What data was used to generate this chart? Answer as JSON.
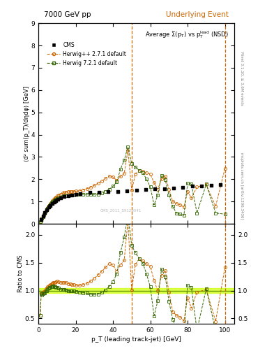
{
  "title_left": "7000 GeV pp",
  "title_right": "Underlying Event",
  "ylabel_main": "⟨d² sum(p_T)/dηdφ⟩ [GeV]",
  "ylabel_ratio": "Ratio to CMS",
  "xlabel": "p_T (leading track-jet) [GeV]",
  "right_label1": "Rivet 3.1.10, ≥ 3.6M events",
  "right_label2": "mcplots.cern.ch [arXiv:1306.3436]",
  "watermark": "CMS_2011_S9120041",
  "ylim_main": [
    0,
    9
  ],
  "ylim_ratio": [
    0.4,
    2.2
  ],
  "xlim": [
    0,
    105
  ],
  "vline1": 50,
  "vline2": 100,
  "cms_x": [
    1.5,
    2.5,
    3.5,
    4.5,
    5.5,
    6.5,
    7.5,
    8.5,
    9.5,
    10.5,
    12.0,
    14.0,
    16.0,
    18.0,
    20.0,
    22.5,
    27.5,
    32.5,
    37.5,
    42.5,
    47.5,
    52.5,
    57.5,
    62.5,
    67.5,
    72.5,
    77.5,
    82.5,
    87.5,
    92.5,
    97.5
  ],
  "cms_y": [
    0.18,
    0.34,
    0.5,
    0.63,
    0.74,
    0.83,
    0.91,
    0.98,
    1.04,
    1.09,
    1.16,
    1.22,
    1.27,
    1.3,
    1.33,
    1.36,
    1.4,
    1.42,
    1.44,
    1.45,
    1.46,
    1.52,
    1.54,
    1.56,
    1.58,
    1.61,
    1.64,
    1.68,
    1.71,
    1.73,
    1.75
  ],
  "hpp_x": [
    1.0,
    1.5,
    2.0,
    2.5,
    3.0,
    3.5,
    4.0,
    4.5,
    5.0,
    5.5,
    6.0,
    6.5,
    7.0,
    7.5,
    8.0,
    8.5,
    9.0,
    9.5,
    10.0,
    11.0,
    12.0,
    13.0,
    14.0,
    15.0,
    16.0,
    17.0,
    18.0,
    19.0,
    20.0,
    22.0,
    24.0,
    26.0,
    28.0,
    30.0,
    32.0,
    34.0,
    36.0,
    38.0,
    40.0,
    42.0,
    44.0,
    46.0,
    48.0,
    50.0,
    52.0,
    54.0,
    56.0,
    58.0,
    60.0,
    62.0,
    64.0,
    66.0,
    68.0,
    70.0,
    72.0,
    74.0,
    76.0,
    78.0,
    80.0,
    82.0,
    85.0,
    90.0,
    95.0,
    100.0
  ],
  "hpp_y": [
    0.1,
    0.17,
    0.25,
    0.33,
    0.41,
    0.5,
    0.58,
    0.66,
    0.73,
    0.8,
    0.86,
    0.92,
    0.98,
    1.03,
    1.08,
    1.12,
    1.16,
    1.2,
    1.24,
    1.29,
    1.33,
    1.37,
    1.4,
    1.42,
    1.43,
    1.44,
    1.44,
    1.45,
    1.46,
    1.48,
    1.52,
    1.57,
    1.64,
    1.72,
    1.82,
    1.92,
    2.03,
    2.14,
    2.1,
    1.95,
    2.12,
    2.25,
    3.3,
    1.5,
    2.22,
    2.4,
    2.35,
    2.28,
    2.22,
    1.85,
    1.55,
    2.0,
    2.15,
    1.55,
    1.0,
    0.9,
    0.85,
    0.75,
    1.45,
    1.15,
    1.65,
    1.75,
    0.78,
    2.48
  ],
  "h7_x": [
    1.0,
    1.5,
    2.0,
    2.5,
    3.0,
    3.5,
    4.0,
    4.5,
    5.0,
    5.5,
    6.0,
    6.5,
    7.0,
    7.5,
    8.0,
    8.5,
    9.0,
    9.5,
    10.0,
    11.0,
    12.0,
    13.0,
    14.0,
    15.0,
    16.0,
    17.0,
    18.0,
    19.0,
    20.0,
    22.0,
    24.0,
    26.0,
    28.0,
    30.0,
    32.0,
    34.0,
    36.0,
    38.0,
    40.0,
    42.0,
    44.0,
    46.0,
    48.0,
    50.0,
    52.0,
    54.0,
    56.0,
    58.0,
    60.0,
    62.0,
    64.0,
    66.0,
    68.0,
    70.0,
    72.0,
    74.0,
    76.0,
    78.0,
    80.0,
    82.0,
    85.0,
    90.0,
    95.0,
    100.0
  ],
  "h7_y": [
    0.1,
    0.17,
    0.24,
    0.32,
    0.4,
    0.48,
    0.56,
    0.63,
    0.7,
    0.77,
    0.83,
    0.88,
    0.93,
    0.98,
    1.02,
    1.05,
    1.08,
    1.1,
    1.13,
    1.16,
    1.19,
    1.22,
    1.24,
    1.26,
    1.27,
    1.28,
    1.29,
    1.3,
    1.31,
    1.32,
    1.32,
    1.32,
    1.31,
    1.31,
    1.33,
    1.38,
    1.45,
    1.55,
    1.68,
    1.88,
    2.45,
    2.85,
    3.45,
    2.7,
    2.55,
    2.4,
    2.28,
    2.0,
    1.65,
    0.85,
    1.28,
    2.18,
    1.98,
    1.28,
    0.78,
    0.48,
    0.43,
    0.38,
    1.82,
    1.78,
    0.48,
    1.78,
    0.48,
    0.43
  ],
  "cms_color": "#000000",
  "hpp_color": "#cc6600",
  "h7_color": "#336600",
  "ratio_band_color": "#ccff00",
  "ratio_line_color": "#669900",
  "vline_color": "#cc6600"
}
